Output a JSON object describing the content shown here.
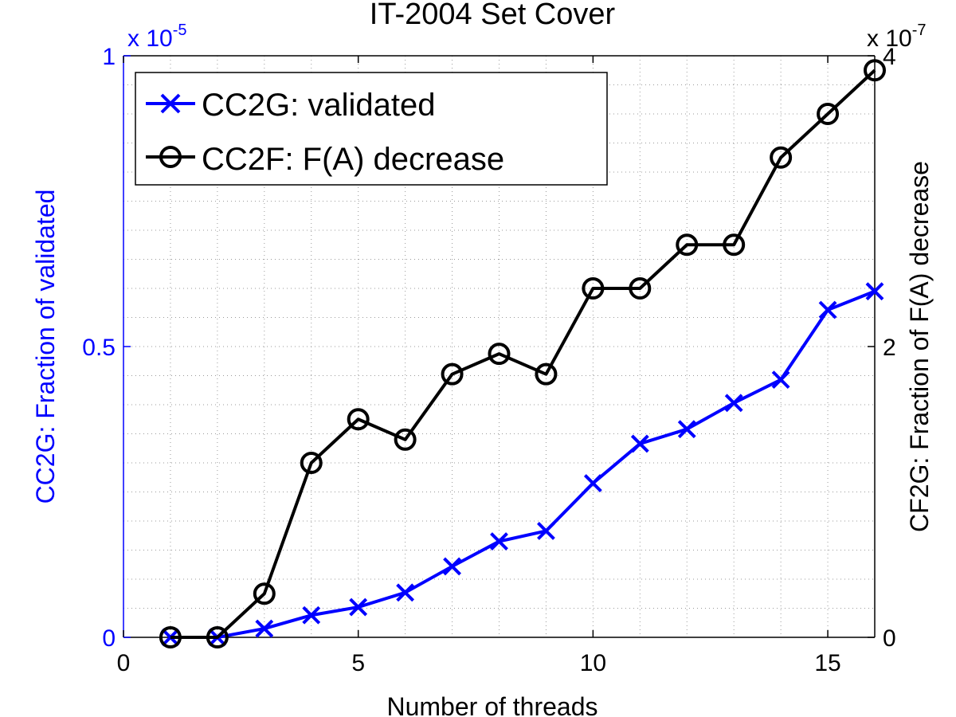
{
  "chart_data": {
    "type": "line",
    "title": "IT-2004 Set Cover",
    "xlabel": "Number of threads",
    "ylabel_left": "CC2G: Fraction of validated",
    "ylabel_right": "CF2G: Fraction of F(A) decrease",
    "xlim": [
      0,
      16
    ],
    "ylim_left": [
      0,
      1
    ],
    "ylim_right": [
      0,
      4
    ],
    "left_multiplier_label": "x 10",
    "left_multiplier_exp": "-5",
    "right_multiplier_label": "x 10",
    "right_multiplier_exp": "-7",
    "x_ticks": [
      "0",
      "5",
      "10",
      "15"
    ],
    "y_left_ticks": [
      "0",
      "0.5",
      "1"
    ],
    "y_right_ticks": [
      "0",
      "2",
      "4"
    ],
    "grid": true,
    "legend_position": "top-left",
    "x": [
      1,
      2,
      3,
      4,
      5,
      6,
      7,
      8,
      9,
      10,
      11,
      12,
      13,
      14,
      15,
      16
    ],
    "series": [
      {
        "name": "CC2G: validated",
        "axis": "left",
        "color": "#0000ff",
        "marker": "x",
        "values": [
          0,
          0,
          0.015,
          0.038,
          0.052,
          0.077,
          0.122,
          0.165,
          0.183,
          0.265,
          0.333,
          0.358,
          0.403,
          0.443,
          0.563,
          0.595
        ]
      },
      {
        "name": "CC2F: F(A) decrease",
        "axis": "right",
        "color": "#000000",
        "marker": "o",
        "values": [
          0,
          0,
          0.3,
          1.2,
          1.5,
          1.36,
          1.81,
          1.95,
          1.81,
          2.4,
          2.4,
          2.7,
          2.7,
          3.3,
          3.6,
          3.9
        ]
      }
    ]
  }
}
